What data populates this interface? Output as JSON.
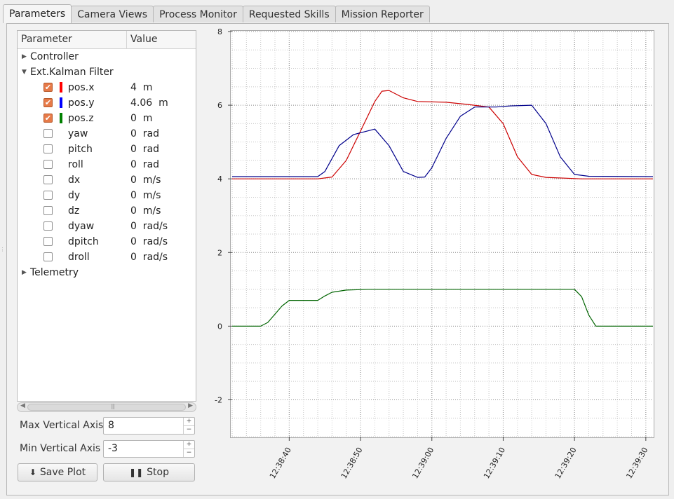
{
  "tabs": [
    "Parameters",
    "Camera Views",
    "Process Monitor",
    "Requested Skills",
    "Mission Reporter"
  ],
  "tree": {
    "header": {
      "parameter": "Parameter",
      "value": "Value"
    },
    "groups": {
      "controller": "Controller",
      "ekf": "Ext.Kalman Filter",
      "telemetry": "Telemetry"
    },
    "params": [
      {
        "name": "pos.x",
        "value": "4  m",
        "checked": true,
        "color": "#ff0000"
      },
      {
        "name": "pos.y",
        "value": "4.06  m",
        "checked": true,
        "color": "#0000ff"
      },
      {
        "name": "pos.z",
        "value": "0  m",
        "checked": true,
        "color": "#008000"
      },
      {
        "name": "yaw",
        "value": "0  rad",
        "checked": false
      },
      {
        "name": "pitch",
        "value": "0  rad",
        "checked": false
      },
      {
        "name": "roll",
        "value": "0  rad",
        "checked": false
      },
      {
        "name": "dx",
        "value": "0  m/s",
        "checked": false
      },
      {
        "name": "dy",
        "value": "0  m/s",
        "checked": false
      },
      {
        "name": "dz",
        "value": "0  m/s",
        "checked": false
      },
      {
        "name": "dyaw",
        "value": "0  rad/s",
        "checked": false
      },
      {
        "name": "dpitch",
        "value": "0  rad/s",
        "checked": false
      },
      {
        "name": "droll",
        "value": "0  rad/s",
        "checked": false
      }
    ]
  },
  "controls": {
    "max_label": "Max Vertical Axis",
    "max_value": "8",
    "min_label": "Min Vertical Axis",
    "min_value": "-3",
    "save_label": "Save Plot",
    "stop_label": "Stop"
  },
  "chart_data": {
    "type": "line",
    "ylim": [
      -3,
      8
    ],
    "yticks": [
      -2,
      0,
      2,
      4,
      6,
      8
    ],
    "xlim": [
      "12:38:32",
      "12:39:31"
    ],
    "xticks": [
      "12:38:40",
      "12:38:50",
      "12:39:00",
      "12:39:10",
      "12:39:20",
      "12:39:30"
    ],
    "grid": true,
    "series": [
      {
        "color": "#cc0000",
        "points": [
          [
            "12:38:32",
            4.0
          ],
          [
            "12:38:44",
            4.0
          ],
          [
            "12:38:46",
            4.05
          ],
          [
            "12:38:48",
            4.5
          ],
          [
            "12:38:50",
            5.3
          ],
          [
            "12:38:52",
            6.1
          ],
          [
            "12:38:53",
            6.38
          ],
          [
            "12:38:54",
            6.4
          ],
          [
            "12:38:56",
            6.2
          ],
          [
            "12:38:58",
            6.1
          ],
          [
            "12:39:02",
            6.08
          ],
          [
            "12:39:05",
            6.02
          ],
          [
            "12:39:08",
            5.95
          ],
          [
            "12:39:10",
            5.5
          ],
          [
            "12:39:12",
            4.6
          ],
          [
            "12:39:14",
            4.12
          ],
          [
            "12:39:16",
            4.04
          ],
          [
            "12:39:21",
            4.0
          ],
          [
            "12:39:31",
            4.0
          ]
        ]
      },
      {
        "color": "#00008b",
        "points": [
          [
            "12:38:32",
            4.06
          ],
          [
            "12:38:44",
            4.06
          ],
          [
            "12:38:45",
            4.2
          ],
          [
            "12:38:47",
            4.9
          ],
          [
            "12:38:49",
            5.2
          ],
          [
            "12:38:52",
            5.35
          ],
          [
            "12:38:54",
            4.9
          ],
          [
            "12:38:56",
            4.2
          ],
          [
            "12:38:58",
            4.04
          ],
          [
            "12:38:59",
            4.05
          ],
          [
            "12:39:00",
            4.3
          ],
          [
            "12:39:02",
            5.1
          ],
          [
            "12:39:04",
            5.7
          ],
          [
            "12:39:06",
            5.95
          ],
          [
            "12:39:09",
            5.95
          ],
          [
            "12:39:11",
            5.98
          ],
          [
            "12:39:14",
            6.0
          ],
          [
            "12:39:16",
            5.5
          ],
          [
            "12:39:18",
            4.6
          ],
          [
            "12:39:20",
            4.12
          ],
          [
            "12:39:22",
            4.07
          ],
          [
            "12:39:31",
            4.06
          ]
        ]
      },
      {
        "color": "#006400",
        "points": [
          [
            "12:38:32",
            0.0
          ],
          [
            "12:38:36",
            0.0
          ],
          [
            "12:38:37",
            0.1
          ],
          [
            "12:38:39",
            0.55
          ],
          [
            "12:38:40",
            0.7
          ],
          [
            "12:38:44",
            0.7
          ],
          [
            "12:38:45",
            0.82
          ],
          [
            "12:38:46",
            0.92
          ],
          [
            "12:38:48",
            0.98
          ],
          [
            "12:38:51",
            1.0
          ],
          [
            "12:39:20",
            1.0
          ],
          [
            "12:39:21",
            0.8
          ],
          [
            "12:39:22",
            0.3
          ],
          [
            "12:39:23",
            0.0
          ],
          [
            "12:39:31",
            0.0
          ]
        ]
      }
    ]
  }
}
